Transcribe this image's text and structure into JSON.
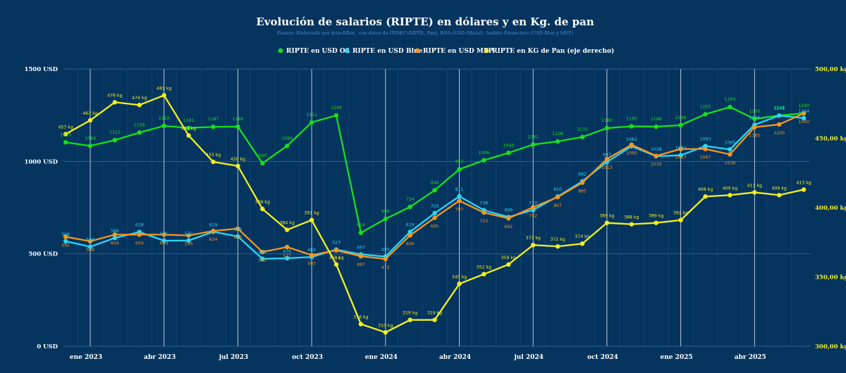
{
  "chart_data": {
    "type": "line",
    "title": "Evolución de salarios (RIPTE) en dólares y en Kg. de pan",
    "subtitle": "Fuente: Elaborado por @tucfifkin_ con datos de INDEC (RIPTE, Pan), BNA (USD Oficial), Ambito Financiero (USD Blue y MEP)",
    "colors": {
      "background": "#05345f",
      "grid": "#2c5e8a",
      "ofi": "#16e01a",
      "blue": "#29d7f5",
      "mep": "#f5961e",
      "pan": "#f2f020",
      "text": "#ffffff"
    },
    "x_ticks": [
      "ene 2023",
      "abr 2023",
      "jul 2023",
      "oct 2023",
      "ene 2024",
      "abr 2024",
      "jul 2024",
      "oct 2024",
      "ene 2025",
      "abr 2025"
    ],
    "x_tick_index": [
      0,
      3,
      6,
      9,
      12,
      15,
      18,
      21,
      24,
      27
    ],
    "x_months": [
      "dic 2022",
      "ene 2023",
      "feb 2023",
      "mar 2023",
      "abr 2023",
      "may 2023",
      "jun 2023",
      "jul 2023",
      "ago 2023",
      "sep 2023",
      "oct 2023",
      "nov 2023",
      "dic 2023",
      "ene 2024",
      "feb 2024",
      "mar 2024",
      "abr 2024",
      "may 2024",
      "jun 2024",
      "jul 2024",
      "ago 2024",
      "sep 2024",
      "oct 2024",
      "nov 2024",
      "dic 2024",
      "ene 2025",
      "feb 2025",
      "mar 2025",
      "abr 2025",
      "may 2025",
      "jun 2025"
    ],
    "x_index": [
      -1,
      0,
      1,
      2,
      3,
      4,
      5,
      6,
      7,
      8,
      9,
      10,
      11,
      12,
      13,
      14,
      15,
      16,
      17,
      18,
      19,
      20,
      21,
      22,
      23,
      24,
      25,
      26,
      27,
      28,
      29
    ],
    "y_left": {
      "min": 0,
      "max": 1500,
      "ticks": [
        0,
        500,
        1000,
        1500
      ],
      "labels": [
        "0 USD",
        "500 USD",
        "1000 USD",
        "1500 USD"
      ]
    },
    "y_right": {
      "min": 300,
      "max": 500,
      "ticks": [
        300,
        350,
        400,
        450,
        500
      ],
      "labels": [
        "300,00 kg",
        "350,00 kg",
        "400,00 kg",
        "450,00 kg",
        "500,00 kg"
      ]
    },
    "series": [
      {
        "name": "RIPTE en USD Ofi",
        "key": "ofi",
        "axis": "left",
        "values": [
          1103,
          1084,
          1115,
          1156,
          1192,
          1181,
          1187,
          1188,
          990,
          1084,
          1211,
          1249,
          614,
          689,
          754,
          844,
          957,
          1006,
          1046,
          1091,
          1108,
          1132,
          1180,
          1190,
          1188,
          1196,
          1255,
          1294,
          1230,
          1248,
          1260
        ],
        "labels": [
          "1103",
          "1084",
          "1115",
          "1156",
          "1192",
          "1181",
          "1187",
          "1188",
          "990",
          "1084",
          "1211",
          "1249",
          "614",
          "689",
          "754",
          "844",
          "957",
          "1006",
          "1046",
          "1091",
          "1108",
          "1132",
          "1180",
          "1190",
          "1188",
          "1196",
          "1255",
          "1294",
          "1230",
          "1248",
          "1260"
        ]
      },
      {
        "name": "RIPTE en USD Blue",
        "key": "blue",
        "axis": "left",
        "values": [
          568,
          538,
          586,
          618,
          571,
          572,
          619,
          594,
          473,
          476,
          483,
          523,
          497,
          485,
          619,
          720,
          811,
          736,
          699,
          737,
          810,
          892,
          997,
          1082,
          1028,
          1033,
          1083,
          1065,
          1198,
          1248,
          1234
        ],
        "labels": [
          "568",
          "538",
          "586",
          "618",
          "571",
          "572",
          "619",
          "594",
          "473",
          "476",
          "483",
          "523",
          "497",
          "485",
          "619",
          "720",
          "811",
          "736",
          "699",
          "737",
          "810",
          "892",
          "997",
          "1082",
          "1028",
          "1033",
          "1083",
          "1065",
          "1198",
          "1248",
          "1234"
        ]
      },
      {
        "name": "RIPTE en USD MEP",
        "key": "mep",
        "axis": "left",
        "values": [
          592,
          568,
          604,
          604,
          604,
          599,
          624,
          636,
          510,
          537,
          493,
          519,
          487,
          472,
          600,
          695,
          787,
          723,
          692,
          752,
          807,
          885,
          1013,
          1090,
          1030,
          1067,
          1067,
          1038,
          1185,
          1200,
          1260
        ],
        "labels": [
          "592",
          "568",
          "604",
          "604",
          "604",
          "599",
          "624",
          "636",
          "510",
          "537",
          "493",
          "519",
          "487",
          "472",
          "600",
          "695",
          "787",
          "723",
          "692",
          "752",
          "807",
          "885",
          "1013",
          "1090",
          "1030",
          "1067",
          "1067",
          "1038",
          "1185",
          "1200",
          "1260"
        ]
      },
      {
        "name": "RIPTE en KG de Pan (eje derecho)",
        "key": "pan",
        "axis": "right",
        "values": [
          453,
          463,
          476,
          474,
          481,
          452,
          433,
          430,
          399,
          384,
          391,
          359,
          316,
          310,
          319,
          319,
          345,
          352,
          359,
          373,
          372,
          374,
          389,
          388,
          389,
          391,
          408,
          409,
          411,
          409,
          413
        ],
        "labels": [
          "453 kg",
          "463 kg",
          "476 kg",
          "474 kg",
          "481 kg",
          "452 kg",
          "433 kg",
          "430 kg",
          "399 kg",
          "384 kg",
          "391 kg",
          "359 kg",
          "316 kg",
          "310 kg",
          "319 kg",
          "319 kg",
          "345 kg",
          "352 kg",
          "359 kg",
          "373 kg",
          "372 kg",
          "374 kg",
          "389 kg",
          "388 kg",
          "389 kg",
          "391 kg",
          "408 kg",
          "409 kg",
          "411 kg",
          "409 kg",
          "413 kg"
        ]
      }
    ]
  }
}
